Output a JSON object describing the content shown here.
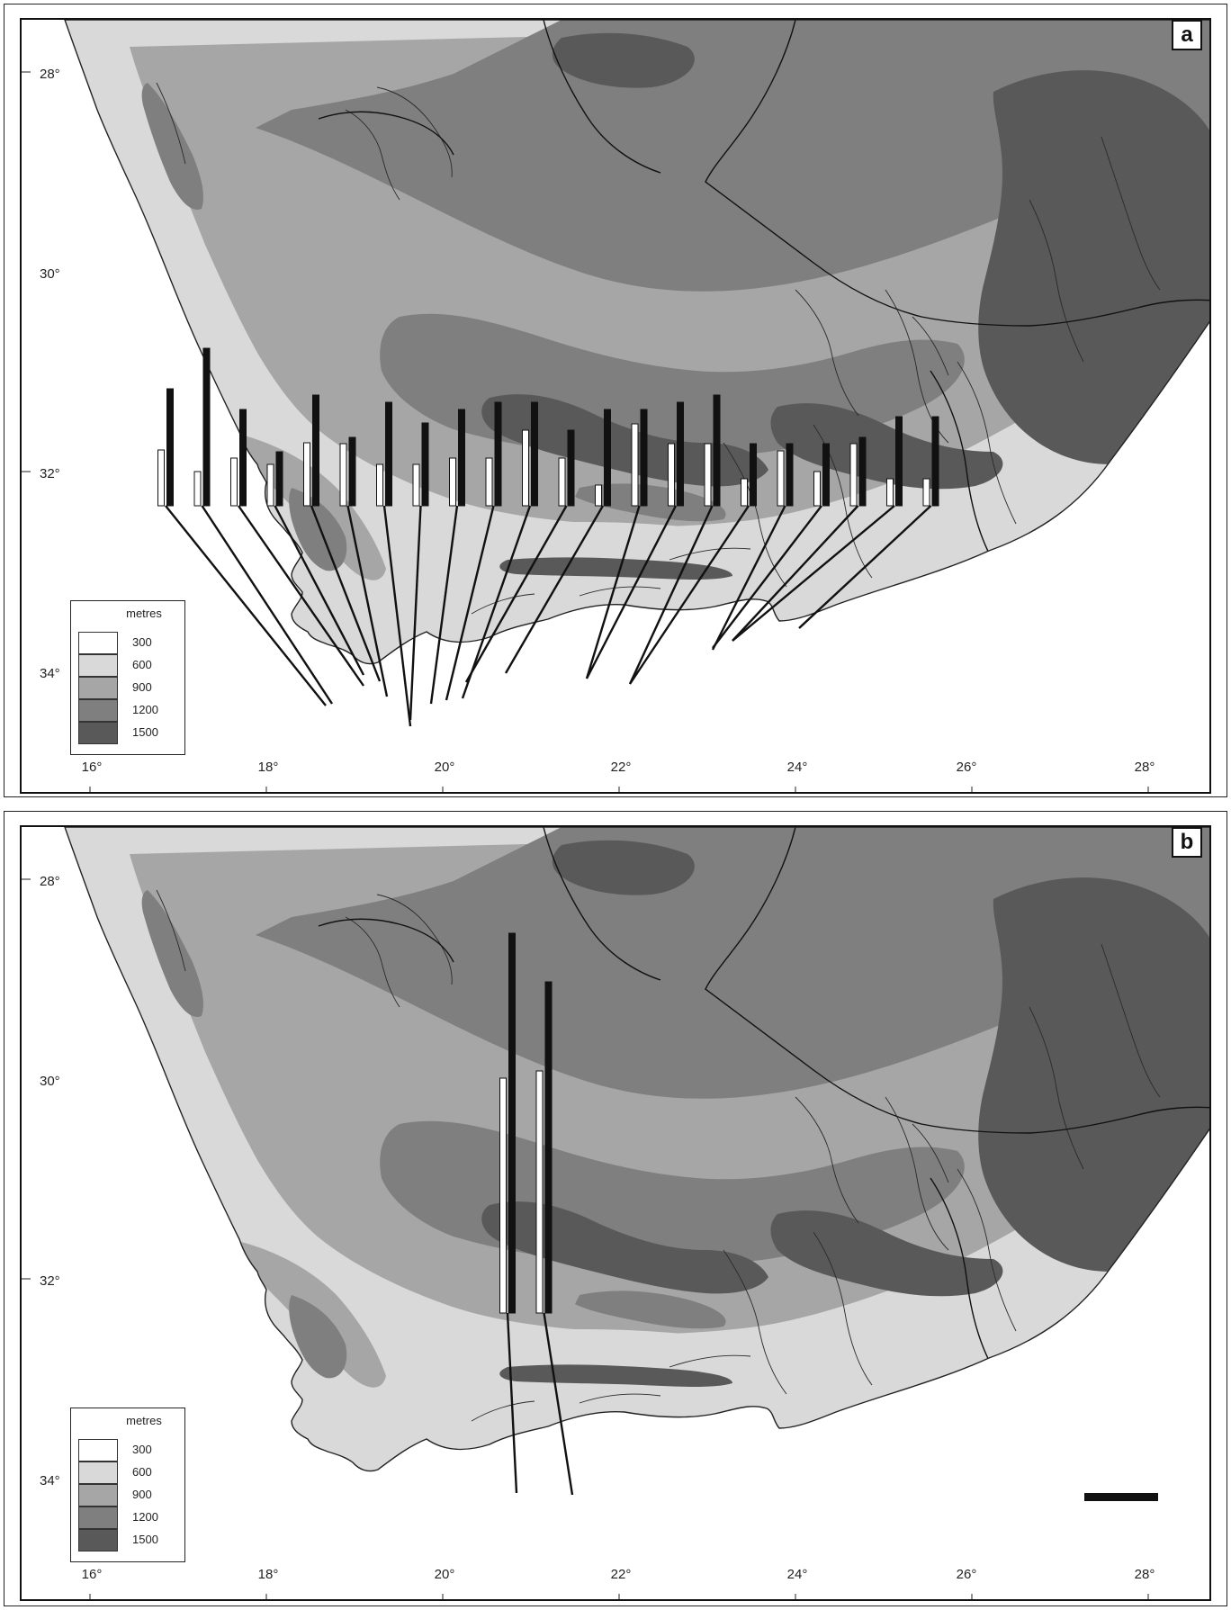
{
  "panels": [
    {
      "id": "a",
      "letter": "a",
      "bar_pairs": [
        {
          "white": 0.62,
          "black": 1.3
        },
        {
          "white": 0.38,
          "black": 1.75
        },
        {
          "white": 0.53,
          "black": 1.07
        },
        {
          "white": 0.46,
          "black": 0.6
        },
        {
          "white": 0.7,
          "black": 1.23
        },
        {
          "white": 0.69,
          "black": 0.76
        },
        {
          "white": 0.46,
          "black": 1.15
        },
        {
          "white": 0.46,
          "black": 0.92
        },
        {
          "white": 0.53,
          "black": 1.07
        },
        {
          "white": 0.53,
          "black": 1.15
        },
        {
          "white": 0.84,
          "black": 1.15
        },
        {
          "white": 0.53,
          "black": 0.84
        },
        {
          "white": 0.23,
          "black": 1.07
        },
        {
          "white": 0.91,
          "black": 1.07
        },
        {
          "white": 0.69,
          "black": 1.15
        },
        {
          "white": 0.69,
          "black": 1.23
        },
        {
          "white": 0.3,
          "black": 0.69
        },
        {
          "white": 0.61,
          "black": 0.69
        },
        {
          "white": 0.38,
          "black": 0.69
        },
        {
          "white": 0.69,
          "black": 0.76
        },
        {
          "white": 0.3,
          "black": 0.99
        },
        {
          "white": 0.3,
          "black": 0.99
        }
      ]
    },
    {
      "id": "b",
      "letter": "b",
      "bar_pairs": [
        {
          "white": 2.61,
          "black": 4.22
        },
        {
          "white": 2.69,
          "black": 3.68
        }
      ]
    }
  ],
  "axes": {
    "latitudes": [
      "28°",
      "30°",
      "32°",
      "34°"
    ],
    "longitudes": [
      "16°",
      "18°",
      "20°",
      "22°",
      "24°",
      "26°",
      "28°"
    ]
  },
  "legend": {
    "title": "metres",
    "items": [
      {
        "label": "300",
        "color": "#ffffff"
      },
      {
        "label": "600",
        "color": "#d9d9d9"
      },
      {
        "label": "900",
        "color": "#a6a6a6"
      },
      {
        "label": "1200",
        "color": "#7f7f7f"
      },
      {
        "label": "1500",
        "color": "#595959"
      }
    ]
  },
  "colors": {
    "ocean": "#ffffff",
    "coast_line": "#222222",
    "river_line": "#2a2a2a",
    "white_bar": "#ffffff",
    "black_bar": "#111111"
  }
}
